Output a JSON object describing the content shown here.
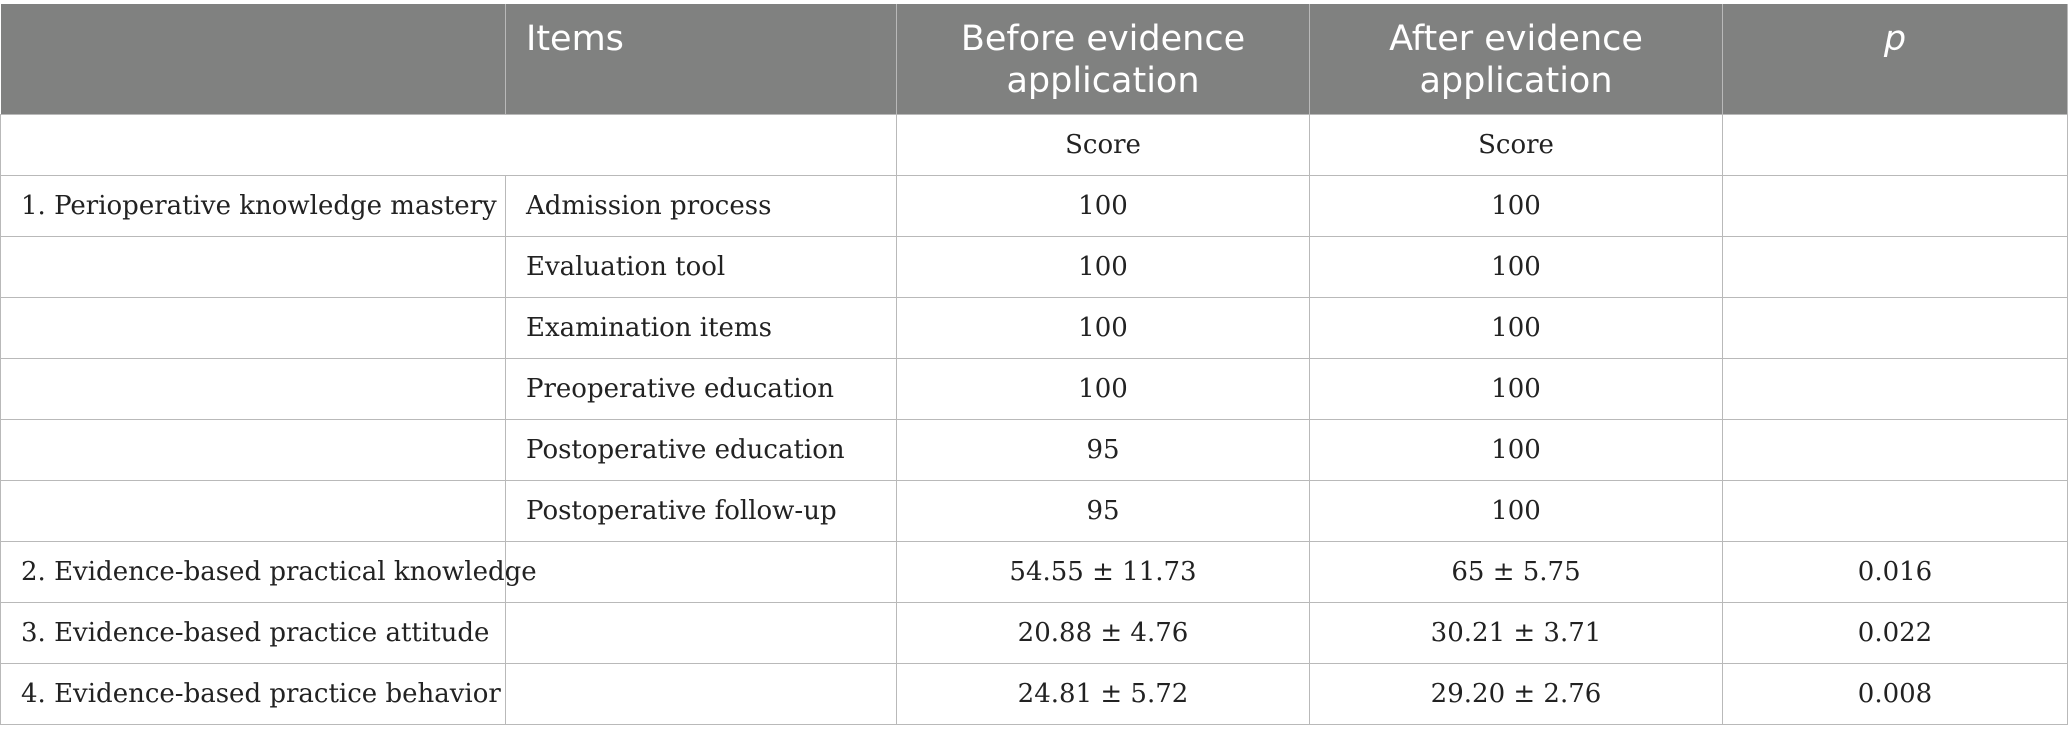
{
  "table": {
    "headers": [
      "",
      "Items",
      "Before evidence application",
      "After evidence application",
      "p"
    ],
    "subheader": [
      "",
      "",
      "Score",
      "Score",
      ""
    ],
    "rows": [
      [
        "1. Perioperative knowledge mastery",
        "Admission process",
        "100",
        "100",
        ""
      ],
      [
        "",
        "Evaluation tool",
        "100",
        "100",
        ""
      ],
      [
        "",
        "Examination items",
        "100",
        "100",
        ""
      ],
      [
        "",
        "Preoperative education",
        "100",
        "100",
        ""
      ],
      [
        "",
        "Postoperative education",
        "95",
        "100",
        ""
      ],
      [
        "",
        "Postoperative follow-up",
        "95",
        "100",
        ""
      ],
      [
        "2. Evidence-based practical knowledge",
        "",
        "54.55 ± 11.73",
        "65 ± 5.75",
        "0.016"
      ],
      [
        "3. Evidence-based practice attitude",
        "",
        "20.88 ± 4.76",
        "30.21 ± 3.71",
        "0.022"
      ],
      [
        "4. Evidence-based practice behavior",
        "",
        "24.81 ± 5.72",
        "29.20 ± 2.76",
        "0.008"
      ]
    ]
  },
  "colors": {
    "header_bg": "#808180",
    "header_text": "#ffffff",
    "grid": "#b9b9b9"
  }
}
